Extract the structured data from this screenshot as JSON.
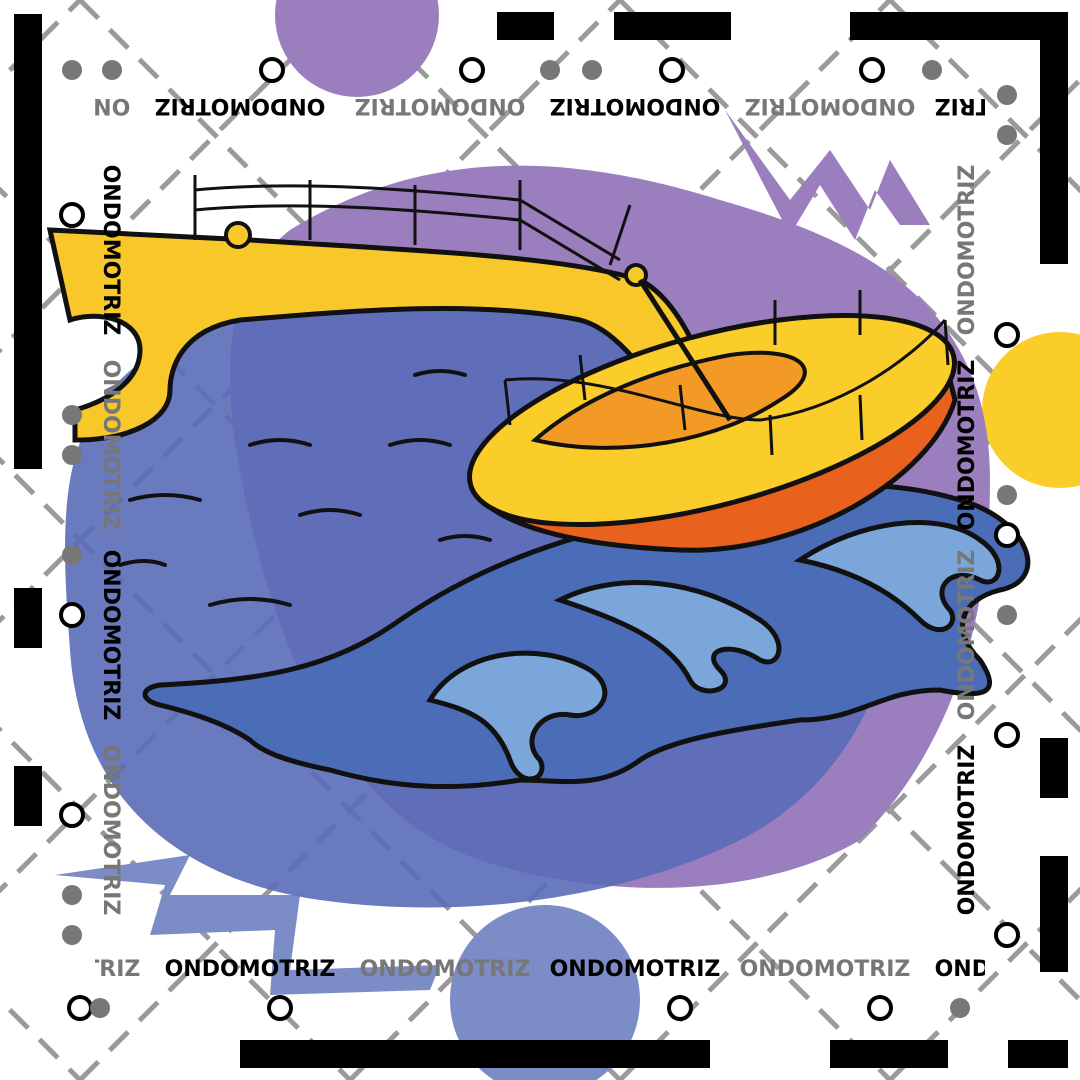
{
  "brand": {
    "text": "ONDOMOTRIZ"
  }
}
